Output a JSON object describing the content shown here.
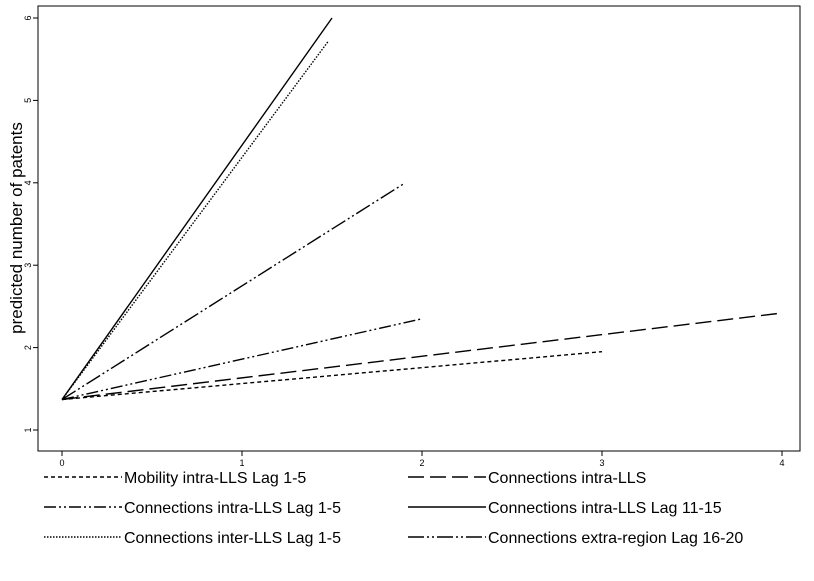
{
  "chart_data": {
    "type": "line",
    "ylabel": "predicted number of patents",
    "xlabel": "",
    "xlim": [
      0,
      4
    ],
    "ylim": [
      1,
      6
    ],
    "xticks": [
      "0",
      "1",
      "2",
      "3",
      "4"
    ],
    "yticks": [
      "1",
      "2",
      "3",
      "4",
      "5",
      "6"
    ],
    "grid": false,
    "legend_position": "bottom",
    "series": [
      {
        "name": "Mobility intra-LLS Lag 1-5",
        "dash": "short-dash",
        "x": [
          0,
          3
        ],
        "y": [
          1.37,
          1.95
        ]
      },
      {
        "name": "Connections intra-LLS",
        "dash": "long-dash",
        "x": [
          0,
          4
        ],
        "y": [
          1.37,
          2.42
        ]
      },
      {
        "name": "Connections intra-LLS Lag 1-5",
        "dash": "dash-dot-dot",
        "x": [
          0,
          2
        ],
        "y": [
          1.37,
          2.35
        ]
      },
      {
        "name": "Connections intra-LLS Lag 11-15",
        "dash": "solid",
        "x": [
          0,
          1.5
        ],
        "y": [
          1.37,
          6.0
        ]
      },
      {
        "name": "Connections inter-LLS Lag 1-5",
        "dash": "dotted",
        "x": [
          0,
          1.48
        ],
        "y": [
          1.37,
          5.72
        ]
      },
      {
        "name": "Connections extra-region Lag 16-20",
        "dash": "long-dash-dot-dot",
        "x": [
          0,
          1.9
        ],
        "y": [
          1.37,
          3.99
        ]
      }
    ]
  }
}
